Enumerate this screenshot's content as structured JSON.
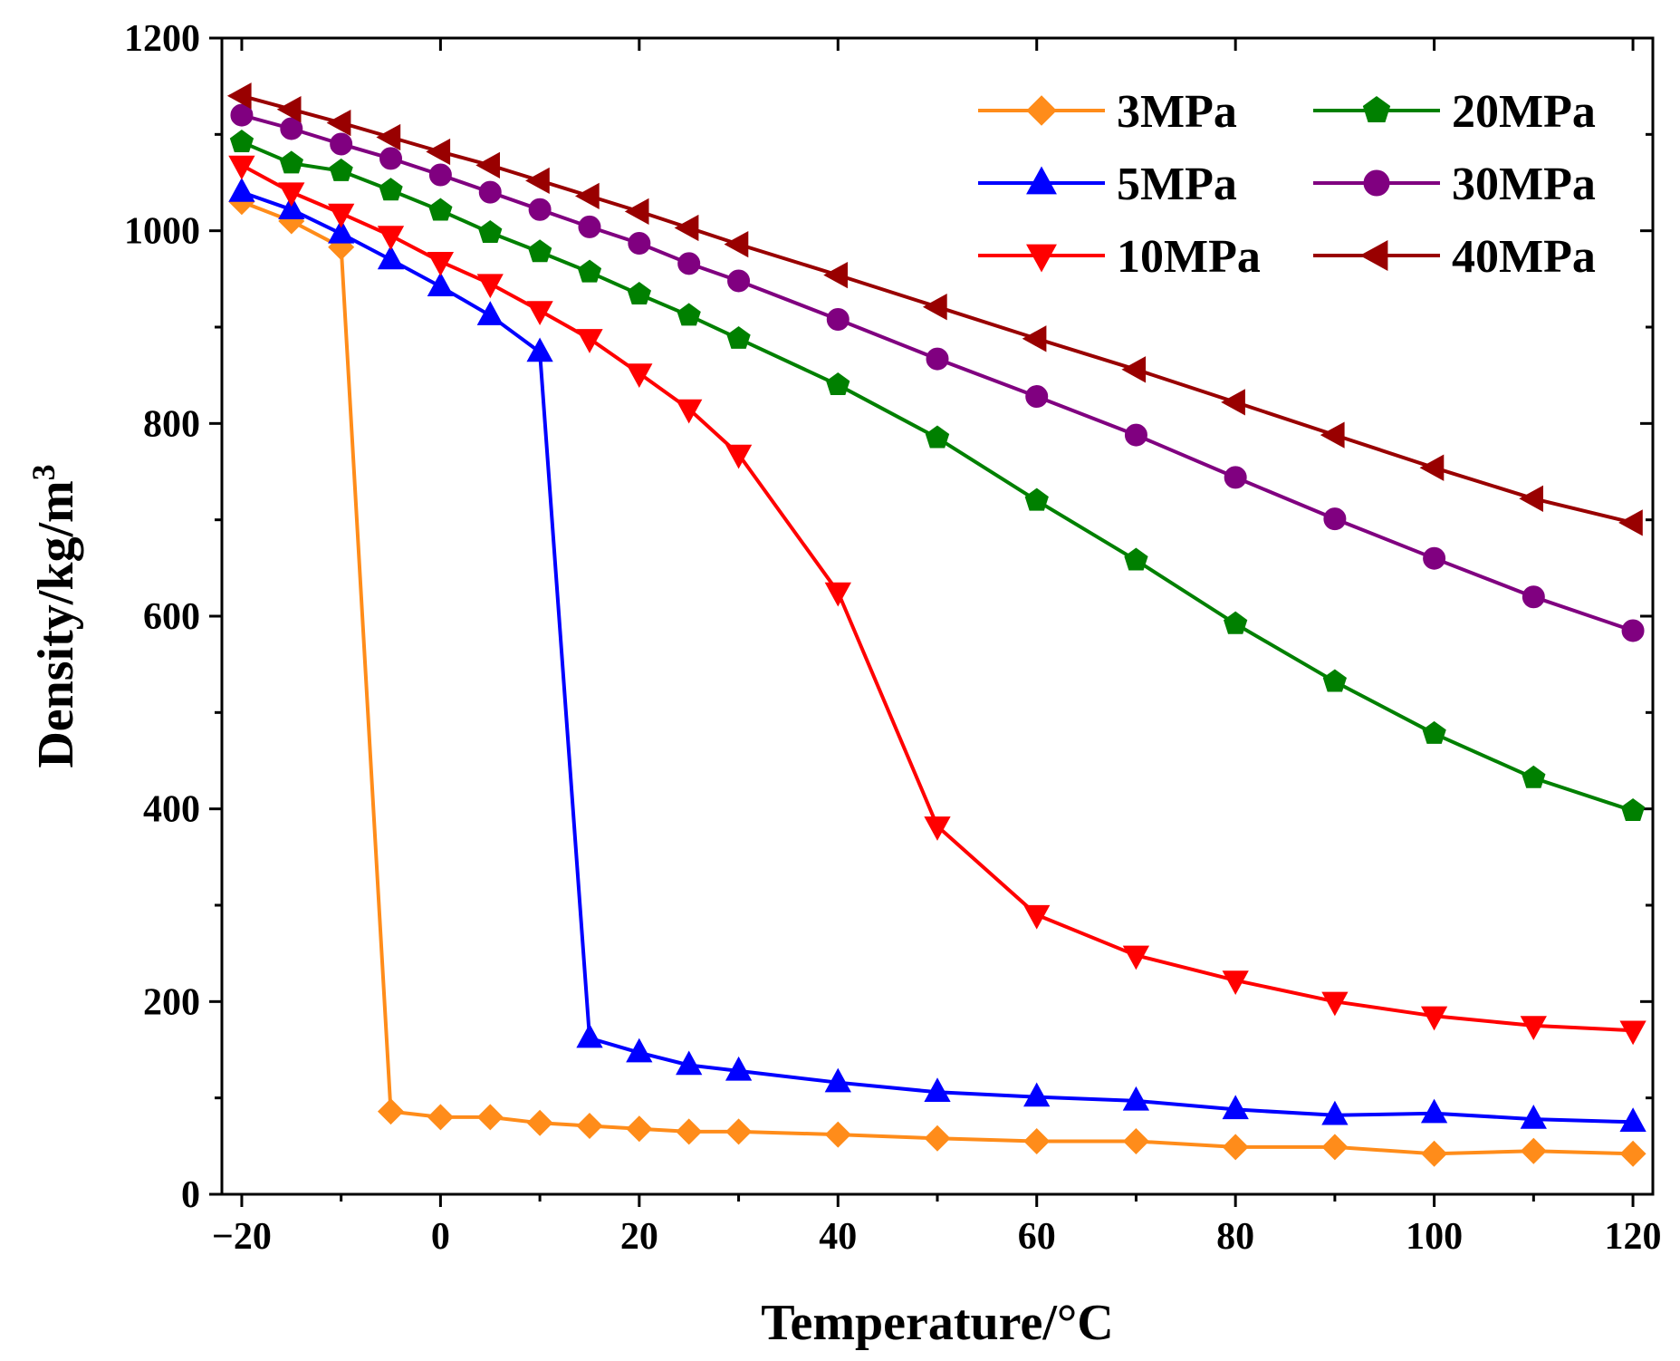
{
  "chart_data": {
    "type": "line",
    "title": "",
    "xlabel": "Temperature/°C",
    "ylabel": "Density/kg/m",
    "ylabel_sup": "3",
    "xlim": [
      -22,
      122
    ],
    "ylim": [
      0,
      1200
    ],
    "xticks": [
      -20,
      0,
      20,
      40,
      60,
      80,
      100,
      120
    ],
    "xtick_labels": [
      "−20",
      "0",
      "20",
      "40",
      "60",
      "80",
      "100",
      "120"
    ],
    "yticks": [
      0,
      200,
      400,
      600,
      800,
      1000,
      1200
    ],
    "ytick_labels": [
      "0",
      "200",
      "400",
      "600",
      "800",
      "1000",
      "1200"
    ],
    "legend_position": "top-right",
    "grid": false,
    "series": [
      {
        "name": "3MPa",
        "color": "#ff8c1a",
        "marker": "diamond",
        "x": [
          -20,
          -15,
          -10,
          -5,
          0,
          5,
          10,
          15,
          20,
          25,
          30,
          40,
          50,
          60,
          70,
          80,
          90,
          100,
          110,
          120
        ],
        "y": [
          1030,
          1010,
          983,
          86,
          80,
          80,
          74,
          71,
          68,
          65,
          65,
          62,
          58,
          55,
          55,
          49,
          49,
          42,
          45,
          42
        ]
      },
      {
        "name": "5MPa",
        "color": "#0000ff",
        "marker": "triangle-up",
        "x": [
          -20,
          -15,
          -10,
          -5,
          0,
          5,
          10,
          15,
          20,
          25,
          30,
          40,
          50,
          60,
          70,
          80,
          90,
          100,
          110,
          120
        ],
        "y": [
          1040,
          1022,
          997,
          970,
          942,
          912,
          874,
          162,
          147,
          134,
          128,
          116,
          106,
          101,
          97,
          88,
          82,
          84,
          78,
          75
        ]
      },
      {
        "name": "10MPa",
        "color": "#ff0000",
        "marker": "triangle-down",
        "x": [
          -20,
          -15,
          -10,
          -5,
          0,
          5,
          10,
          15,
          20,
          25,
          30,
          40,
          50,
          60,
          70,
          80,
          90,
          100,
          110,
          120
        ],
        "y": [
          1068,
          1040,
          1018,
          995,
          968,
          945,
          917,
          888,
          852,
          815,
          768,
          625,
          382,
          290,
          248,
          222,
          200,
          185,
          175,
          170
        ]
      },
      {
        "name": "20MPa",
        "color": "#008000",
        "marker": "pentagon",
        "x": [
          -20,
          -15,
          -10,
          -5,
          0,
          5,
          10,
          15,
          20,
          25,
          30,
          40,
          50,
          60,
          70,
          80,
          90,
          100,
          110,
          120
        ],
        "y": [
          1092,
          1070,
          1062,
          1042,
          1021,
          998,
          978,
          957,
          934,
          912,
          888,
          840,
          785,
          720,
          658,
          592,
          532,
          478,
          432,
          398
        ]
      },
      {
        "name": "30MPa",
        "color": "#800080",
        "marker": "circle",
        "x": [
          -20,
          -15,
          -10,
          -5,
          0,
          5,
          10,
          15,
          20,
          25,
          30,
          40,
          50,
          60,
          70,
          80,
          90,
          100,
          110,
          120
        ],
        "y": [
          1120,
          1106,
          1090,
          1075,
          1058,
          1040,
          1022,
          1004,
          987,
          966,
          948,
          908,
          867,
          828,
          788,
          744,
          701,
          660,
          620,
          585
        ]
      },
      {
        "name": "40MPa",
        "color": "#990000",
        "marker": "triangle-left",
        "x": [
          -20,
          -15,
          -10,
          -5,
          0,
          5,
          10,
          15,
          20,
          25,
          30,
          40,
          50,
          60,
          70,
          80,
          90,
          100,
          110,
          120
        ],
        "y": [
          1140,
          1126,
          1112,
          1097,
          1082,
          1068,
          1052,
          1036,
          1020,
          1003,
          986,
          954,
          921,
          888,
          856,
          822,
          788,
          754,
          722,
          697
        ]
      }
    ]
  }
}
